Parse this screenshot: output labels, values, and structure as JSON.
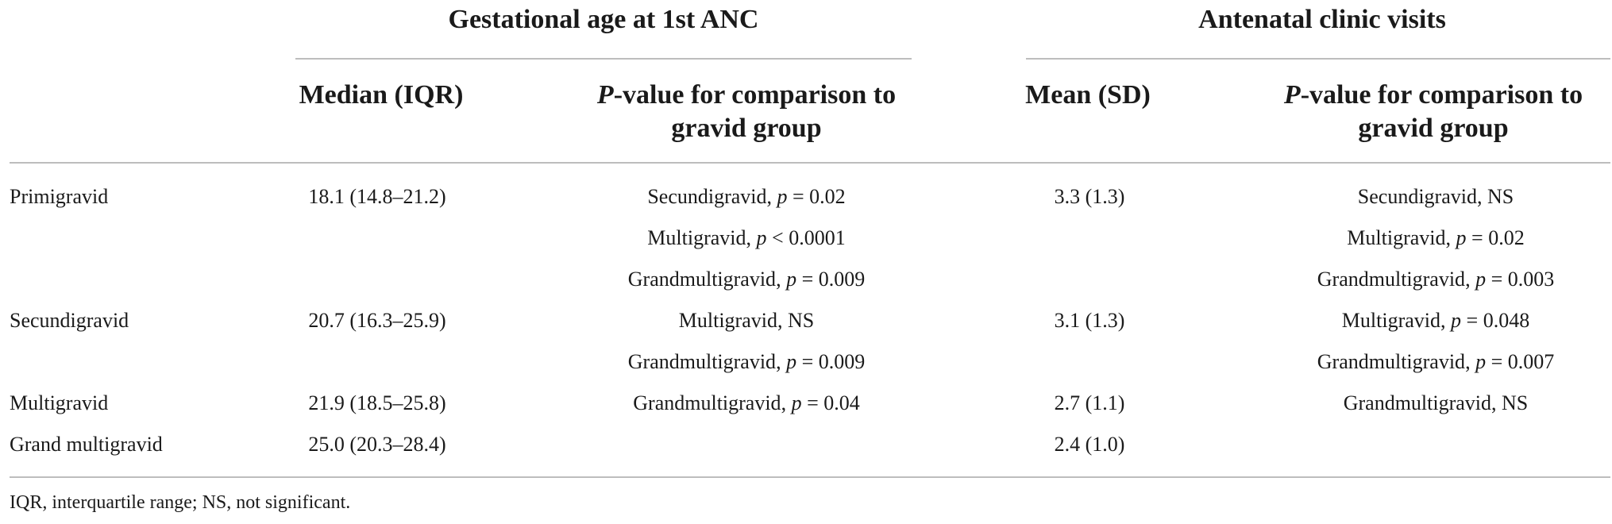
{
  "groups": {
    "gestational": "Gestational age at 1st ANC",
    "antenatal": "Antenatal clinic visits"
  },
  "columns": {
    "median": "Median (IQR)",
    "pvalue_prefix": "P",
    "pvalue_line1_rest": "-value for comparison to",
    "pvalue_line2": "gravid group",
    "mean": "Mean (SD)"
  },
  "rows": [
    {
      "label": "Primigravid",
      "median": "18.1 (14.8–21.2)",
      "mean": "3.3 (1.3)",
      "ga_comparisons": [
        {
          "group": "Secundigravid",
          "p_letter": "p",
          "op": "=",
          "value": "0.02"
        },
        {
          "group": "Multigravid",
          "p_letter": "p",
          "op": "<",
          "value": "0.0001"
        },
        {
          "group": "Grandmultigravid",
          "p_letter": "p",
          "op": "=",
          "value": "0.009"
        }
      ],
      "visit_comparisons": [
        {
          "group": "Secundigravid",
          "ns": "NS"
        },
        {
          "group": "Multigravid",
          "p_letter": "p",
          "op": "=",
          "value": "0.02"
        },
        {
          "group": "Grandmultigravid",
          "p_letter": "p",
          "op": "=",
          "value": "0.003"
        }
      ]
    },
    {
      "label": "Secundigravid",
      "median": "20.7 (16.3–25.9)",
      "mean": "3.1 (1.3)",
      "ga_comparisons": [
        {
          "group": "Multigravid",
          "ns": "NS"
        },
        {
          "group": "Grandmultigravid",
          "p_letter": "p",
          "op": "=",
          "value": "0.009"
        }
      ],
      "visit_comparisons": [
        {
          "group": "Multigravid",
          "p_letter": "p",
          "op": "=",
          "value": "0.048"
        },
        {
          "group": "Grandmultigravid",
          "p_letter": "p",
          "op": "=",
          "value": "0.007"
        }
      ]
    },
    {
      "label": "Multigravid",
      "median": "21.9 (18.5–25.8)",
      "mean": "2.7 (1.1)",
      "ga_comparisons": [
        {
          "group": "Grandmultigravid",
          "p_letter": "p",
          "op": "=",
          "value": "0.04"
        }
      ],
      "visit_comparisons": [
        {
          "group": "Grandmultigravid",
          "ns": "NS"
        }
      ]
    },
    {
      "label": "Grand multigravid",
      "median": "25.0 (20.3–28.4)",
      "mean": "2.4 (1.0)",
      "ga_comparisons": [],
      "visit_comparisons": []
    }
  ],
  "footnote": "IQR, interquartile range; NS, not significant."
}
